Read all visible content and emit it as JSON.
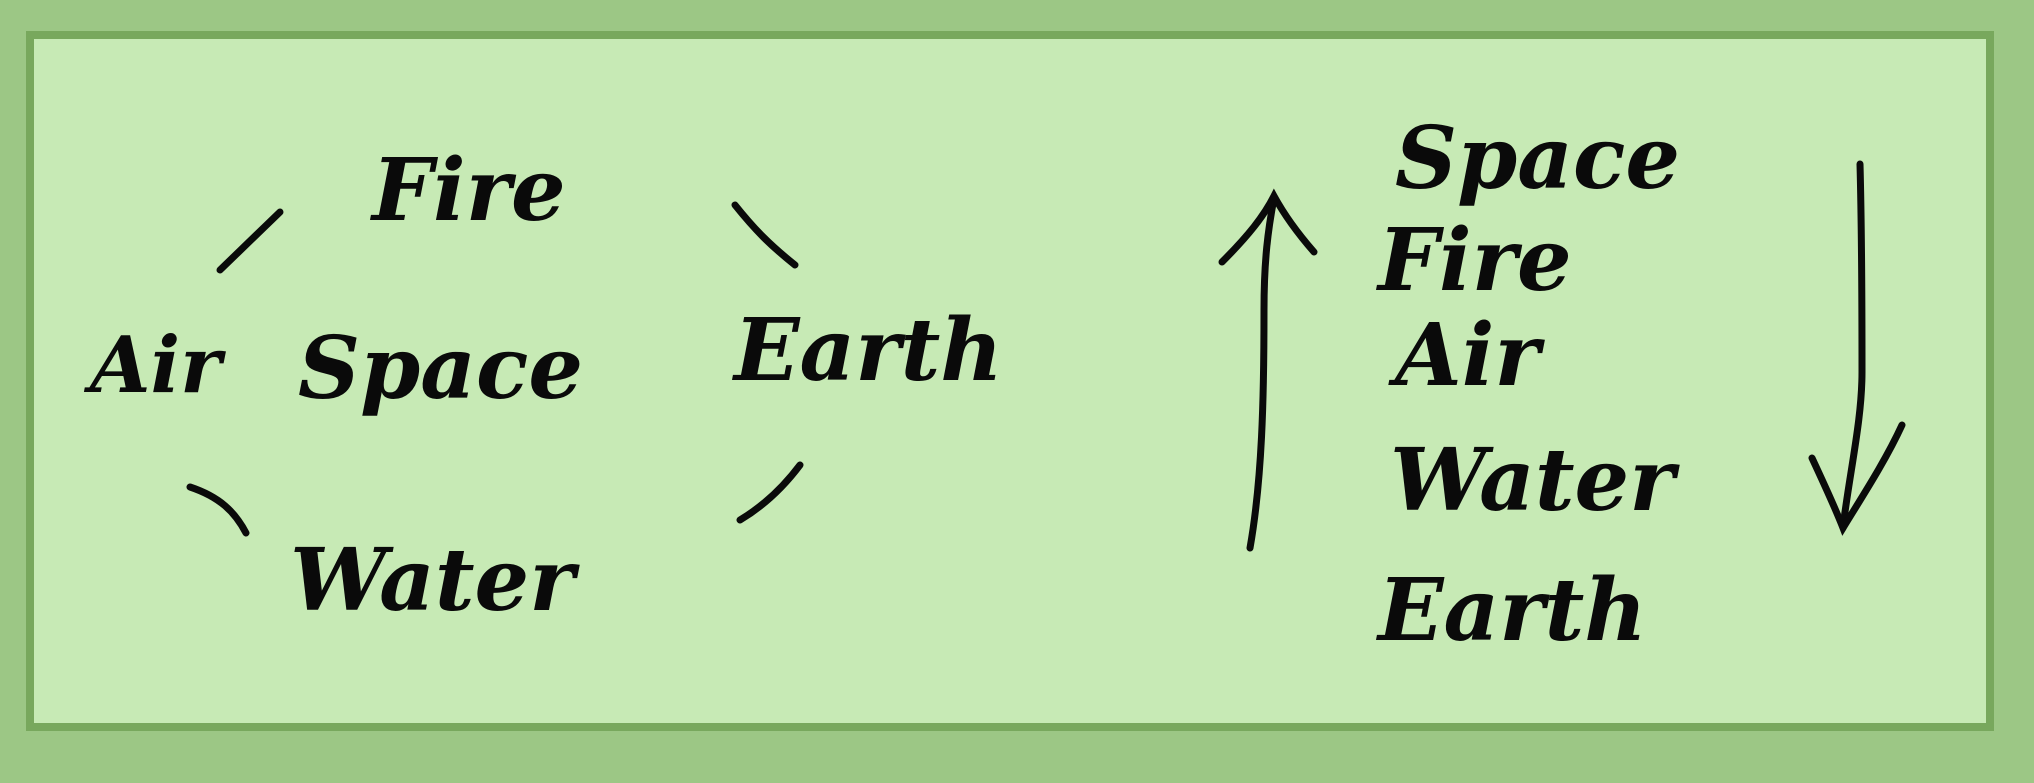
{
  "circle": {
    "top": "Fire",
    "left": "Air",
    "center": "Space",
    "right": "Earth",
    "bottom": "Water"
  },
  "sequence": {
    "items": [
      "Space",
      "Fire",
      "Air",
      "Water",
      "Earth"
    ]
  },
  "colors": {
    "background": "#c7eab5",
    "frame_border": "#78a85d",
    "outer": "#9cc785",
    "ink": "#0a0a0a"
  }
}
